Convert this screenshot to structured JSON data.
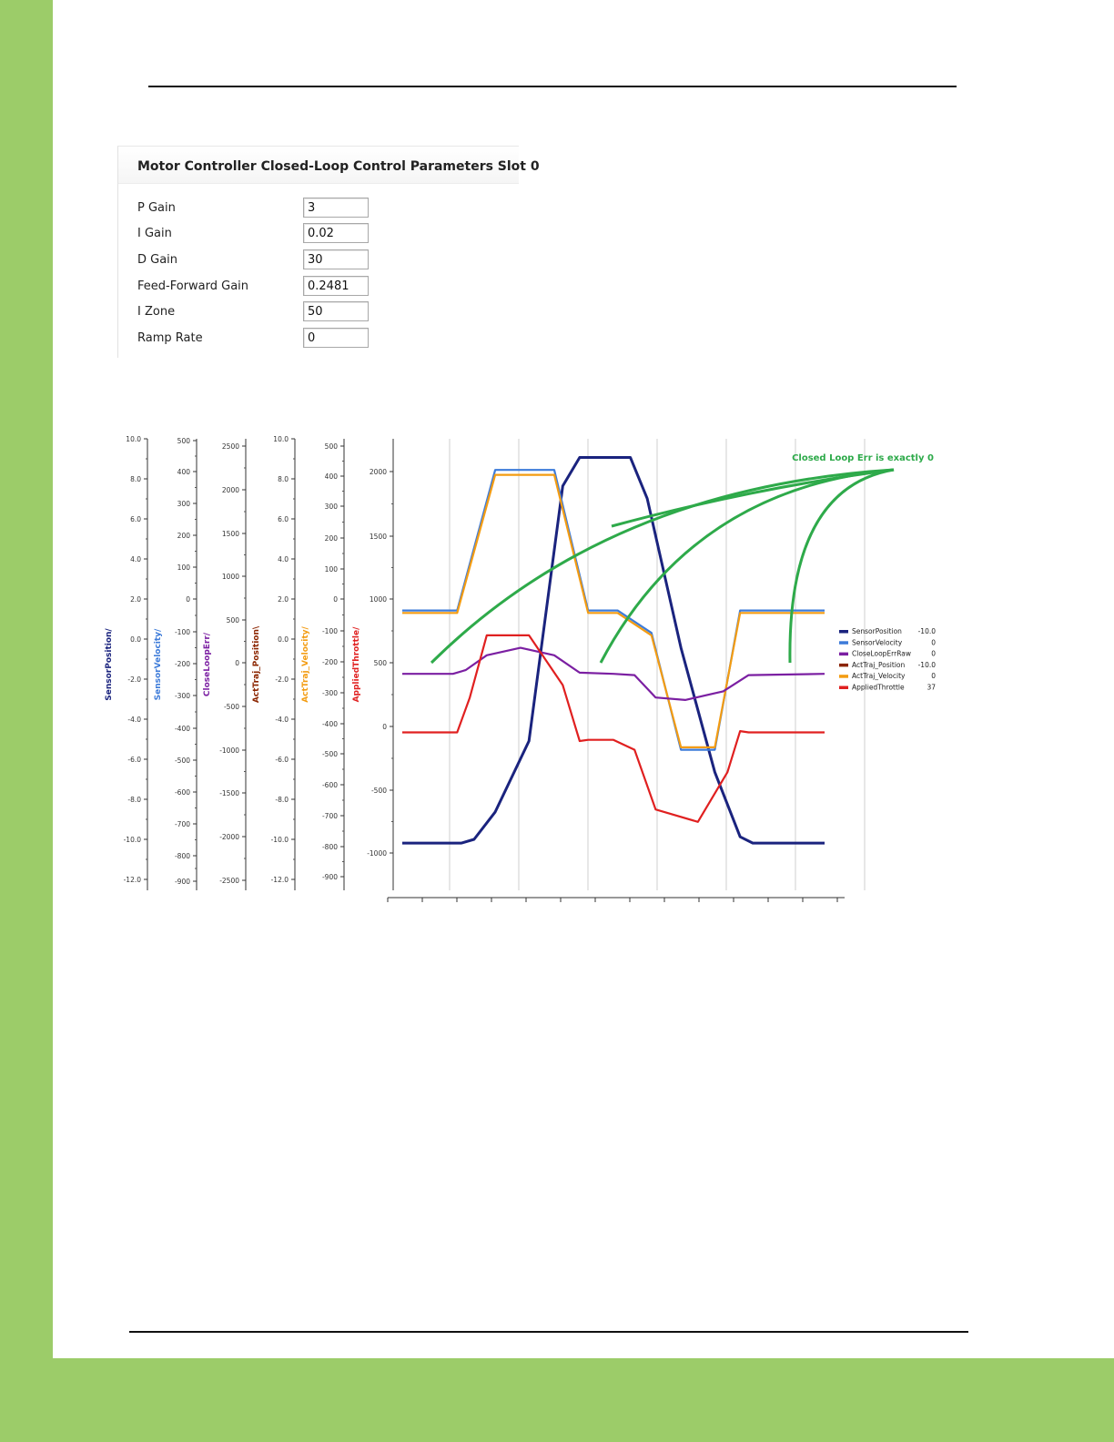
{
  "params": {
    "title": "Motor Controller Closed-Loop Control Parameters Slot 0",
    "rows": [
      {
        "label": "P Gain",
        "value": "3"
      },
      {
        "label": "I Gain",
        "value": "0.02"
      },
      {
        "label": "D Gain",
        "value": "30"
      },
      {
        "label": "Feed-Forward Gain",
        "value": "0.2481"
      },
      {
        "label": "I Zone",
        "value": "50"
      },
      {
        "label": "Ramp Rate",
        "value": "0"
      }
    ]
  },
  "chart_data": {
    "type": "line",
    "annotation": "Closed Loop Err is exactly 0",
    "axes": [
      {
        "label": "SensorPosition/",
        "color": "#1a237e",
        "ticks": [
          "10.0",
          "8.0",
          "6.0",
          "4.0",
          "2.0",
          "0.0",
          "-2.0",
          "-4.0",
          "-6.0",
          "-8.0",
          "-10.0",
          "-12.0"
        ]
      },
      {
        "label": "SensorVelocity/",
        "color": "#3d7bd9",
        "ticks": [
          "500",
          "400",
          "300",
          "200",
          "100",
          "0",
          "-100",
          "-200",
          "-300",
          "-400",
          "-500",
          "-600",
          "-700",
          "-800",
          "-900"
        ]
      },
      {
        "label": "CloseLoopErr/",
        "color": "#7b1fa2",
        "ticks": [
          "2500",
          "2000",
          "1500",
          "1000",
          "500",
          "0",
          "-500",
          "-1000",
          "-1500",
          "-2000",
          "-2500"
        ]
      },
      {
        "label": "ActTraj_Position\\",
        "color": "#8b2500",
        "ticks": [
          "10.0",
          "8.0",
          "6.0",
          "4.0",
          "2.0",
          "0.0",
          "-2.0",
          "-4.0",
          "-6.0",
          "-8.0",
          "-10.0",
          "-12.0"
        ]
      },
      {
        "label": "ActTraj_Velocity/",
        "color": "#f39c12",
        "ticks": [
          "500",
          "400",
          "300",
          "200",
          "100",
          "0",
          "-100",
          "-200",
          "-300",
          "-400",
          "-500",
          "-600",
          "-700",
          "-800",
          "-900"
        ]
      },
      {
        "label": "AppliedThrottle/",
        "color": "#e02020",
        "ticks": [
          "2000",
          "1500",
          "1000",
          "500",
          "0",
          "-500",
          "-1000"
        ]
      }
    ],
    "main_ylim": [
      -1250,
      2380
    ],
    "legend": {
      "placement": "right",
      "entries": [
        {
          "name": "SensorPosition",
          "value": "-10.0",
          "color": "#1a237e"
        },
        {
          "name": "SensorVelocity",
          "value": "0",
          "color": "#3d7bd9"
        },
        {
          "name": "CloseLoopErrRaw",
          "value": "0",
          "color": "#7b1fa2"
        },
        {
          "name": "ActTraj_Position",
          "value": "-10.0",
          "color": "#8b2500"
        },
        {
          "name": "ActTraj_Velocity",
          "value": "0",
          "color": "#f39c12"
        },
        {
          "name": "AppliedThrottle",
          "value": "37",
          "color": "#e02020"
        }
      ]
    },
    "series": [
      {
        "name": "SensorPosition",
        "x": [
          0,
          0.14,
          0.17,
          0.22,
          0.3,
          0.38,
          0.42,
          0.54,
          0.58,
          0.66,
          0.74,
          0.8,
          0.83,
          1.0
        ],
        "y": [
          -870,
          -870,
          -840,
          -620,
          -50,
          2000,
          2230,
          2230,
          1900,
          700,
          -300,
          -820,
          -870,
          -870
        ]
      },
      {
        "name": "SensorVelocity",
        "x": [
          0,
          0.13,
          0.22,
          0.36,
          0.44,
          0.51,
          0.59,
          0.66,
          0.74,
          0.8,
          0.88,
          1.0
        ],
        "y": [
          1000,
          1000,
          2130,
          2130,
          1000,
          1000,
          820,
          -120,
          -120,
          1000,
          1000,
          1000
        ]
      },
      {
        "name": "ActTraj_Velocity",
        "x": [
          0,
          0.13,
          0.22,
          0.36,
          0.44,
          0.51,
          0.59,
          0.66,
          0.74,
          0.8,
          0.88,
          1.0
        ],
        "y": [
          980,
          980,
          2090,
          2090,
          980,
          980,
          800,
          -100,
          -100,
          980,
          980,
          980
        ]
      },
      {
        "name": "CloseLoopErrRaw",
        "x": [
          0,
          0.12,
          0.15,
          0.2,
          0.28,
          0.36,
          0.42,
          0.5,
          0.55,
          0.6,
          0.67,
          0.76,
          0.82,
          1.0
        ],
        "y": [
          490,
          490,
          520,
          640,
          700,
          640,
          500,
          490,
          480,
          300,
          280,
          350,
          480,
          490
        ]
      },
      {
        "name": "AppliedThrottle",
        "x": [
          0,
          0.13,
          0.16,
          0.2,
          0.3,
          0.38,
          0.42,
          0.44,
          0.5,
          0.55,
          0.6,
          0.7,
          0.77,
          0.8,
          0.82,
          1.0
        ],
        "y": [
          20,
          20,
          300,
          800,
          800,
          400,
          -50,
          -40,
          -40,
          -120,
          -600,
          -700,
          -300,
          30,
          20,
          20
        ]
      }
    ]
  }
}
